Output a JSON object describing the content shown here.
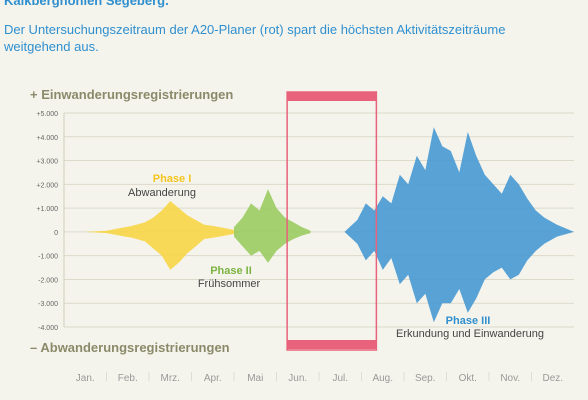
{
  "header": {
    "title": "Kalkberghöhlen Segeberg.",
    "subtitle": "Der Untersuchungszeitraum der A20-Planer (rot) spart die höchsten Aktivitätszeiträume weitgehend aus."
  },
  "colors": {
    "phase1": "#f7d64a",
    "phase2": "#9ccc65",
    "phase3": "#4a9ad4",
    "planer": "#e8627b",
    "axis_label": "#8a8a6a",
    "background": "#f5f4ec"
  },
  "chart_data": {
    "type": "area",
    "ylabel_positive": "+ Einwanderungsregistrierungen",
    "ylabel_negative": "– Abwanderungsregistrierungen",
    "ylim": [
      -4000,
      5000
    ],
    "y_ticks": [
      "+5.000",
      "+4.000",
      "+3.000",
      "+2.000",
      "+1.000",
      "0",
      "-1.000",
      "-2.000",
      "-3.000",
      "-4.000"
    ],
    "y_tick_values": [
      5000,
      4000,
      3000,
      2000,
      1000,
      0,
      -1000,
      -2000,
      -3000,
      -4000
    ],
    "categories": [
      "Jan.",
      "Feb.",
      "Mrz.",
      "Apr.",
      "Mai",
      "Jun.",
      "Jul.",
      "Aug.",
      "Sep.",
      "Okt.",
      "Nov.",
      "Dez."
    ],
    "grid": true,
    "series": [
      {
        "name": "Phase I",
        "description": "Abwanderung",
        "x": [
          0.5,
          1.0,
          1.3,
          1.6,
          1.9,
          2.1,
          2.3,
          2.5,
          2.7,
          2.9,
          3.1,
          3.3,
          3.5,
          3.8,
          4.1
        ],
        "max": [
          0,
          50,
          150,
          250,
          400,
          600,
          900,
          1300,
          1000,
          700,
          500,
          300,
          250,
          150,
          50
        ],
        "min": [
          0,
          -50,
          -150,
          -250,
          -400,
          -700,
          -1000,
          -1600,
          -1300,
          -900,
          -600,
          -300,
          -250,
          -150,
          -50
        ]
      },
      {
        "name": "Phase II",
        "description": "Frühsommer",
        "x": [
          4.0,
          4.2,
          4.4,
          4.6,
          4.8,
          5.0,
          5.2,
          5.4,
          5.6,
          5.8
        ],
        "max": [
          200,
          600,
          1200,
          900,
          1800,
          1000,
          600,
          400,
          200,
          50
        ],
        "min": [
          -200,
          -600,
          -1000,
          -800,
          -1300,
          -800,
          -500,
          -300,
          -150,
          -50
        ]
      },
      {
        "name": "Phase III",
        "description": "Erkundung und Einwanderung",
        "x": [
          6.6,
          6.9,
          7.1,
          7.3,
          7.5,
          7.7,
          7.9,
          8.1,
          8.3,
          8.5,
          8.7,
          8.9,
          9.1,
          9.3,
          9.5,
          9.7,
          9.9,
          10.1,
          10.3,
          10.5,
          10.7,
          10.9,
          11.1,
          11.3,
          11.6,
          12.0
        ],
        "max": [
          0,
          500,
          1200,
          900,
          1500,
          1200,
          2400,
          2000,
          3200,
          2600,
          4400,
          3600,
          3400,
          2500,
          4200,
          3200,
          2400,
          2000,
          1600,
          2400,
          2000,
          1400,
          900,
          600,
          300,
          0
        ],
        "min": [
          0,
          -500,
          -1200,
          -800,
          -1600,
          -1100,
          -2200,
          -1800,
          -3000,
          -2600,
          -3800,
          -3000,
          -3000,
          -2400,
          -3400,
          -2800,
          -2000,
          -1700,
          -1500,
          -2000,
          -1800,
          -1200,
          -800,
          -500,
          -200,
          0
        ]
      }
    ],
    "annotations": [
      {
        "label": "A20-Planer (rot)",
        "x_start": 5.25,
        "x_end": 7.35
      }
    ]
  }
}
